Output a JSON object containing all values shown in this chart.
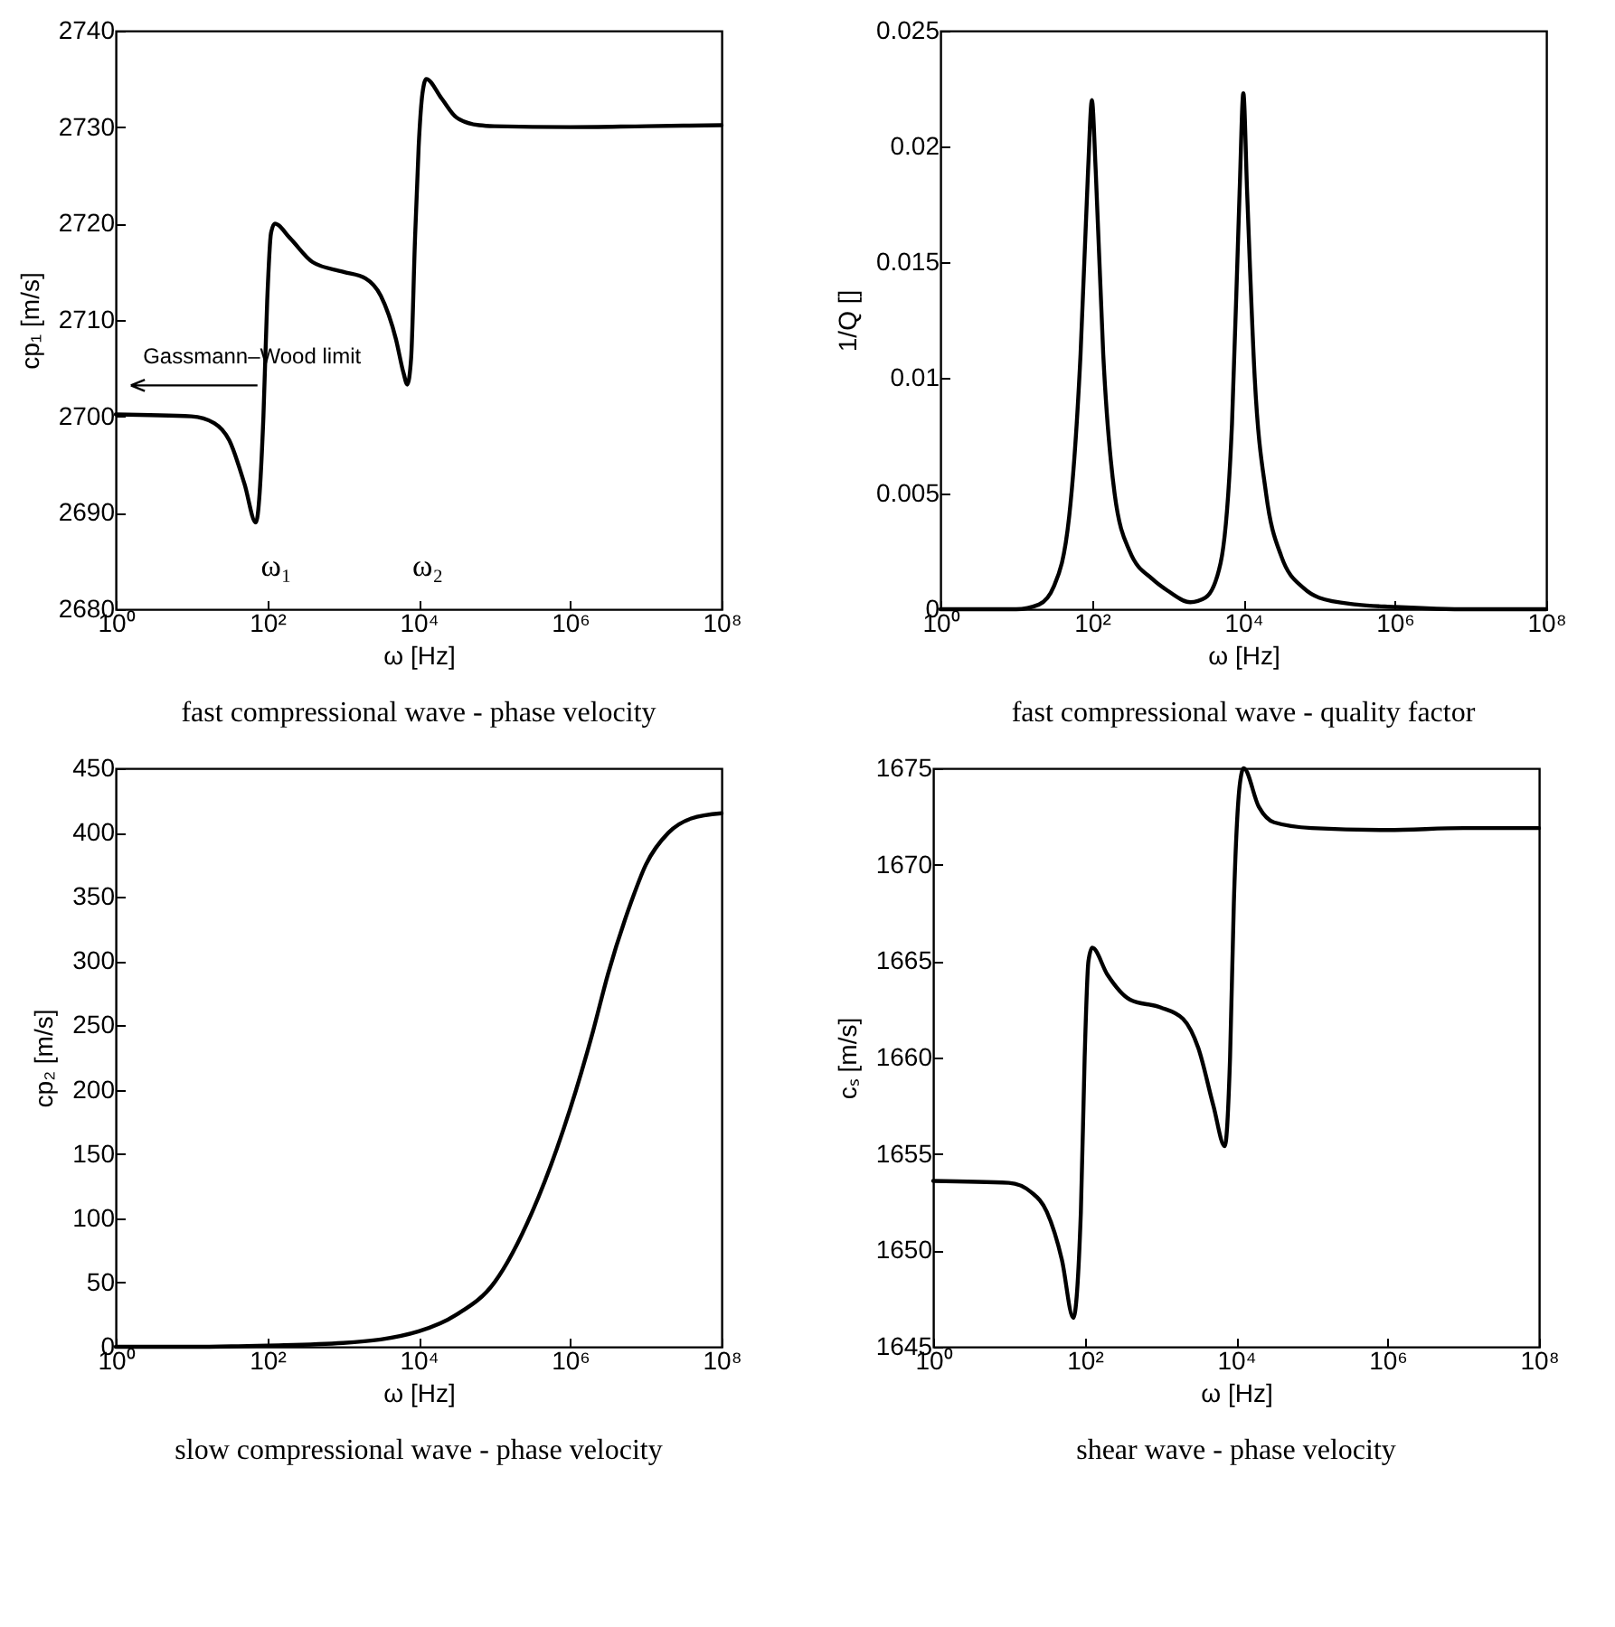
{
  "chart_data": [
    {
      "type": "line",
      "title": "fast compressional wave - phase velocity",
      "xlabel": "ω [Hz]",
      "ylabel": "cp₁ [m/s]",
      "log": "x",
      "xlim": [
        1,
        100000000
      ],
      "ylim": [
        2680,
        2740
      ],
      "xticks": [
        {
          "value": 1,
          "label": "10⁰"
        },
        {
          "value": 100,
          "label": "10²"
        },
        {
          "value": 10000,
          "label": "10⁴"
        },
        {
          "value": 1000000,
          "label": "10⁶"
        },
        {
          "value": 100000000,
          "label": "10⁸"
        }
      ],
      "yticks": [
        2680,
        2690,
        2700,
        2710,
        2720,
        2730,
        2740
      ],
      "x": [
        1,
        10,
        19.95,
        31.62,
        50.12,
        70.79,
        89.13,
        100,
        112.2,
        125.9,
        199.5,
        398.1,
        1000,
        1995,
        3162,
        5012,
        6310,
        7079,
        7943,
        8913,
        10000,
        11220,
        12590,
        19950,
        31620,
        63100,
        100000,
        1000000,
        10000000,
        100000000
      ],
      "series": [
        {
          "color": "#000000",
          "values": [
            2700.2,
            2700.0,
            2699.3,
            2697.5,
            2693,
            2689,
            2700,
            2712,
            2719,
            2720,
            2718.5,
            2716,
            2715,
            2714.3,
            2712.5,
            2708,
            2704.5,
            2703.3,
            2706,
            2718,
            2728,
            2733.5,
            2735,
            2733,
            2731,
            2730.2,
            2730.1,
            2730,
            2730.1,
            2730.2
          ]
        }
      ],
      "annotations": [
        "Gassmann–Wood limit",
        "ω₁",
        "ω₂"
      ]
    },
    {
      "type": "line",
      "title": "fast compressional wave - quality factor",
      "xlabel": "ω [Hz]",
      "ylabel": "1/Q []",
      "log": "x",
      "xlim": [
        1,
        100000000
      ],
      "ylim": [
        0,
        0.025
      ],
      "xticks": [
        {
          "value": 1,
          "label": "10⁰"
        },
        {
          "value": 100,
          "label": "10²"
        },
        {
          "value": 10000,
          "label": "10⁴"
        },
        {
          "value": 1000000,
          "label": "10⁶"
        },
        {
          "value": 100000000,
          "label": "10⁸"
        }
      ],
      "yticks": [
        0,
        0.005,
        0.01,
        0.015,
        0.02,
        0.025
      ],
      "x": [
        1,
        10,
        19.95,
        31.62,
        50.12,
        70.79,
        89.13,
        100,
        112.2,
        141.3,
        199.5,
        316.2,
        631,
        1000,
        1995,
        3162,
        5012,
        7079,
        8913,
        10000,
        11220,
        14130,
        19950,
        31620,
        63100,
        100000,
        316200,
        1000000,
        10000000,
        100000000
      ],
      "series": [
        {
          "color": "#000000",
          "values": [
            0,
            0,
            0.0002,
            0.001,
            0.004,
            0.011,
            0.019,
            0.022,
            0.019,
            0.011,
            0.005,
            0.0025,
            0.0013,
            0.0008,
            0.0003,
            0.0005,
            0.002,
            0.008,
            0.018,
            0.0223,
            0.018,
            0.01,
            0.005,
            0.0023,
            0.0009,
            0.0005,
            0.0002,
            0.0001,
            0,
            0
          ]
        }
      ]
    },
    {
      "type": "line",
      "title": "slow compressional wave - phase velocity",
      "xlabel": "ω [Hz]",
      "ylabel": "cp₂ [m/s]",
      "log": "x",
      "xlim": [
        1,
        100000000
      ],
      "ylim": [
        0,
        450
      ],
      "xticks": [
        {
          "value": 1,
          "label": "10⁰"
        },
        {
          "value": 100,
          "label": "10²"
        },
        {
          "value": 10000,
          "label": "10⁴"
        },
        {
          "value": 1000000,
          "label": "10⁶"
        },
        {
          "value": 100000000,
          "label": "10⁸"
        }
      ],
      "yticks": [
        0,
        50,
        100,
        150,
        200,
        250,
        300,
        350,
        400,
        450
      ],
      "x": [
        1,
        10,
        100,
        1000,
        10000,
        31620,
        100000,
        316200,
        1000000,
        1995000,
        3162000,
        6310000,
        10000000,
        19950000,
        39810000,
        100000000
      ],
      "series": [
        {
          "color": "#000000",
          "values": [
            0,
            0,
            1,
            3,
            12,
            25,
            50,
            105,
            185,
            245,
            290,
            345,
            375,
            400,
            411,
            415
          ]
        }
      ]
    },
    {
      "type": "line",
      "title": "shear wave - phase velocity",
      "xlabel": "ω [Hz]",
      "ylabel": "cₛ [m/s]",
      "log": "x",
      "xlim": [
        1,
        100000000
      ],
      "ylim": [
        1645,
        1675
      ],
      "xticks": [
        {
          "value": 1,
          "label": "10⁰"
        },
        {
          "value": 100,
          "label": "10²"
        },
        {
          "value": 10000,
          "label": "10⁴"
        },
        {
          "value": 1000000,
          "label": "10⁶"
        },
        {
          "value": 100000000,
          "label": "10⁸"
        }
      ],
      "yticks": [
        1645,
        1650,
        1655,
        1660,
        1665,
        1670,
        1675
      ],
      "x": [
        1,
        10,
        19.95,
        31.62,
        50.12,
        70.79,
        89.13,
        100,
        112.2,
        125.9,
        199.5,
        398.1,
        1000,
        1995,
        3162,
        5012,
        7079,
        8318,
        9333,
        11220,
        12590,
        19950,
        31620,
        100000,
        1000000,
        10000000,
        100000000
      ],
      "series": [
        {
          "color": "#000000",
          "values": [
            1653.6,
            1653.5,
            1653,
            1652,
            1649.5,
            1646.5,
            1652,
            1660,
            1665,
            1665.7,
            1664.3,
            1663,
            1662.6,
            1662,
            1660.5,
            1657.5,
            1655.4,
            1660,
            1668,
            1674.2,
            1675,
            1673,
            1672.2,
            1671.9,
            1671.8,
            1671.9,
            1671.9
          ]
        }
      ]
    }
  ]
}
